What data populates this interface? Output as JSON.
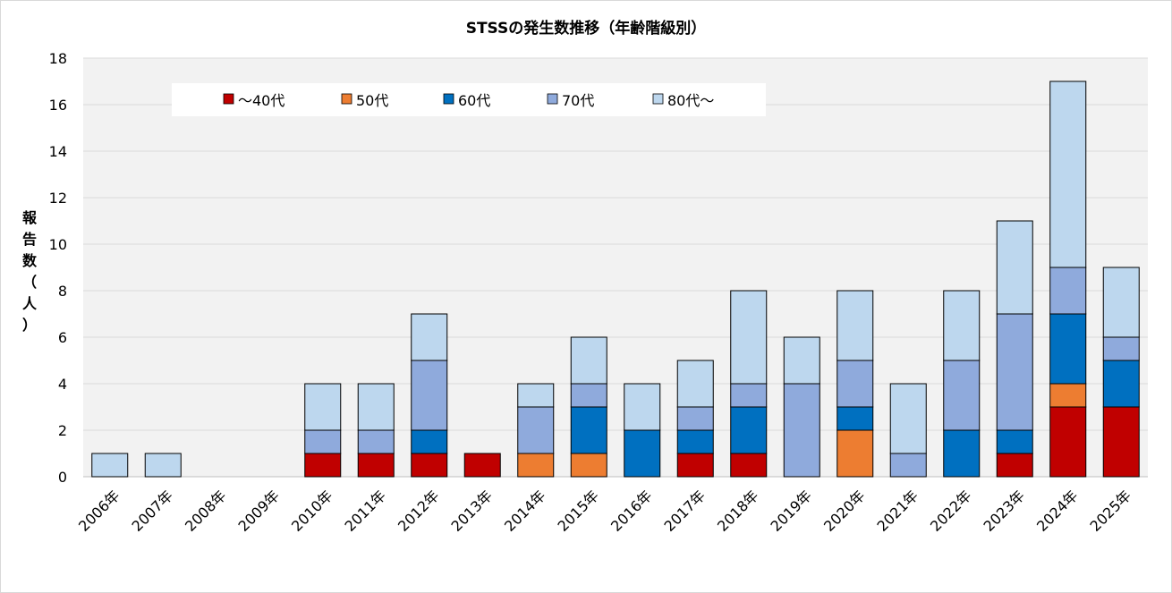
{
  "chart_data": {
    "type": "bar",
    "stacked": true,
    "title": "STSSの発生数推移（年齢階級別）",
    "ylabel": "報告数（人）",
    "xlabel": "",
    "ylim": [
      0,
      18
    ],
    "yticks": [
      0,
      2,
      4,
      6,
      8,
      10,
      12,
      14,
      16,
      18
    ],
    "grid": true,
    "legend_position": "top-left",
    "categories": [
      "2006年",
      "2007年",
      "2008年",
      "2009年",
      "2010年",
      "2011年",
      "2012年",
      "2013年",
      "2014年",
      "2015年",
      "2016年",
      "2017年",
      "2018年",
      "2019年",
      "2020年",
      "2021年",
      "2022年",
      "2023年",
      "2024年",
      "2025年"
    ],
    "series": [
      {
        "name": "～40代",
        "color": "#c00000",
        "values": [
          0,
          0,
          0,
          0,
          1,
          1,
          1,
          1,
          0,
          0,
          0,
          1,
          1,
          0,
          0,
          0,
          0,
          1,
          3,
          3
        ]
      },
      {
        "name": "50代",
        "color": "#ed7d31",
        "values": [
          0,
          0,
          0,
          0,
          0,
          0,
          0,
          0,
          1,
          1,
          0,
          0,
          0,
          0,
          2,
          0,
          0,
          0,
          1,
          0
        ]
      },
      {
        "name": "60代",
        "color": "#0070c0",
        "values": [
          0,
          0,
          0,
          0,
          0,
          0,
          1,
          0,
          0,
          2,
          2,
          1,
          2,
          0,
          1,
          0,
          2,
          1,
          3,
          2
        ]
      },
      {
        "name": "70代",
        "color": "#8faadc",
        "values": [
          0,
          0,
          0,
          0,
          1,
          1,
          3,
          0,
          2,
          1,
          0,
          1,
          1,
          4,
          2,
          1,
          3,
          5,
          2,
          1
        ]
      },
      {
        "name": "80代～",
        "color": "#bdd7ee",
        "values": [
          1,
          1,
          0,
          0,
          2,
          2,
          2,
          0,
          1,
          2,
          2,
          2,
          4,
          2,
          3,
          3,
          3,
          4,
          8,
          3
        ]
      }
    ]
  }
}
